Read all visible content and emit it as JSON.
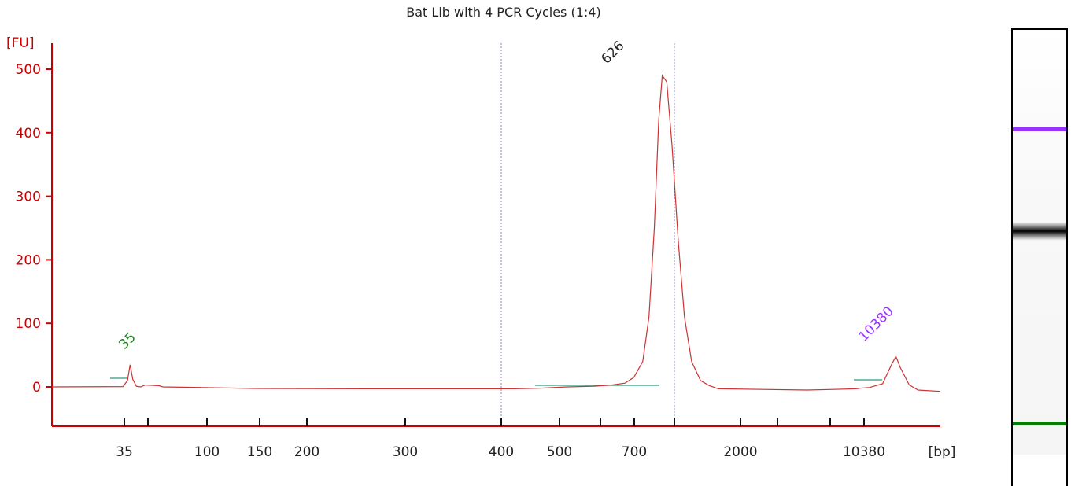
{
  "chart_data": {
    "type": "line",
    "title": "Bat Lib with 4 PCR Cycles (1:4)",
    "ylabel": "[FU]",
    "xlabel": "[bp]",
    "ylim": [
      -60,
      540
    ],
    "yticks": [
      0,
      100,
      200,
      300,
      400,
      500
    ],
    "xtick_labels": [
      "35",
      "",
      "100",
      "150",
      "200",
      "300",
      "400",
      "500",
      "",
      "700",
      "",
      "2000",
      "",
      "",
      "10380"
    ],
    "series": [
      {
        "color": "#cc3333",
        "points": [
          [
            0,
            0
          ],
          [
            0.08,
            0.5
          ],
          [
            0.085,
            10
          ],
          [
            0.088,
            35
          ],
          [
            0.091,
            12
          ],
          [
            0.095,
            1
          ],
          [
            0.1,
            0
          ],
          [
            0.105,
            3
          ],
          [
            0.12,
            2
          ],
          [
            0.125,
            0
          ],
          [
            0.17,
            -1
          ],
          [
            0.19,
            -1.5
          ],
          [
            0.21,
            -2
          ],
          [
            0.23,
            -2.5
          ],
          [
            0.35,
            -3
          ],
          [
            0.45,
            -3
          ],
          [
            0.52,
            -3
          ],
          [
            0.55,
            -2
          ],
          [
            0.58,
            0
          ],
          [
            0.61,
            1
          ],
          [
            0.63,
            3
          ],
          [
            0.645,
            6
          ],
          [
            0.655,
            15
          ],
          [
            0.665,
            40
          ],
          [
            0.672,
            110
          ],
          [
            0.678,
            250
          ],
          [
            0.683,
            420
          ],
          [
            0.687,
            490
          ],
          [
            0.692,
            480
          ],
          [
            0.698,
            380
          ],
          [
            0.705,
            230
          ],
          [
            0.712,
            110
          ],
          [
            0.72,
            40
          ],
          [
            0.73,
            10
          ],
          [
            0.74,
            2
          ],
          [
            0.75,
            -3
          ],
          [
            0.8,
            -4
          ],
          [
            0.85,
            -5
          ],
          [
            0.88,
            -4
          ],
          [
            0.905,
            -3
          ],
          [
            0.91,
            -2
          ],
          [
            0.92,
            -1
          ],
          [
            0.935,
            5
          ],
          [
            0.945,
            35
          ],
          [
            0.95,
            48
          ],
          [
            0.955,
            30
          ],
          [
            0.965,
            3
          ],
          [
            0.975,
            -5
          ],
          [
            1.0,
            -7
          ]
        ]
      }
    ],
    "peaks": [
      {
        "label": "35",
        "value": 35,
        "color": "#1a8a1a"
      },
      {
        "label": "626",
        "value": 490,
        "color": "#222222"
      },
      {
        "label": "10380",
        "value": 48,
        "color": "#9933ff"
      }
    ],
    "region_marker_color": "#8a8ac0",
    "ladder_marker_colors": {
      "upper": "#9933ff",
      "lower": "#0a7a0a"
    }
  }
}
